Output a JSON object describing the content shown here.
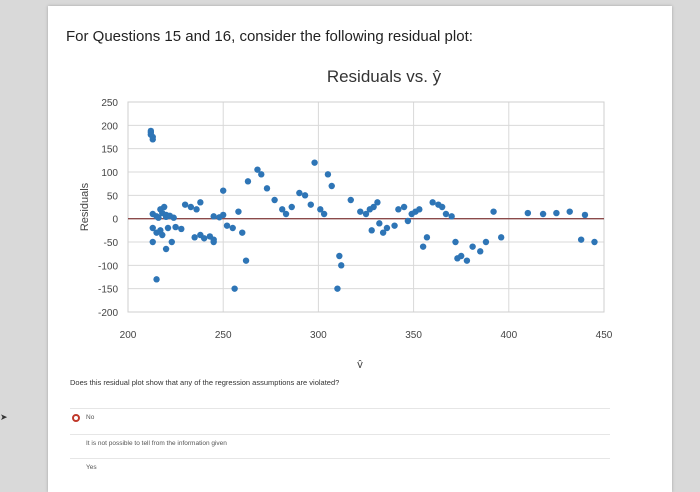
{
  "question": "For Questions 15 and 16, consider the following residual plot:",
  "prompt": "Does this residual plot show that any of the regression assumptions are violated?",
  "options": [
    {
      "label": "No",
      "selected": true
    },
    {
      "label": "It is not possible to tell from the information given",
      "selected": false
    },
    {
      "label": "Yes",
      "selected": false
    }
  ],
  "colors": {
    "points": "#2e75b6",
    "zero_line": "#8b4a4a",
    "grid": "#d9d9d9",
    "selected_radio": "#c0392b"
  },
  "chart_data": {
    "type": "scatter",
    "title": "Residuals vs. ŷ",
    "xlabel": "ŷ",
    "ylabel": "Residuals",
    "xlim": [
      200,
      450
    ],
    "ylim": [
      -200,
      250
    ],
    "xticks": [
      200,
      250,
      300,
      350,
      400,
      450
    ],
    "yticks": [
      250,
      200,
      150,
      100,
      50,
      0,
      -50,
      -100,
      -150,
      -200
    ],
    "grid": true,
    "zero_line": true,
    "points": [
      [
        212,
        185
      ],
      [
        212,
        180
      ],
      [
        213,
        175
      ],
      [
        212,
        188
      ],
      [
        213,
        170
      ],
      [
        213,
        10
      ],
      [
        215,
        5
      ],
      [
        218,
        12
      ],
      [
        220,
        8
      ],
      [
        216,
        2
      ],
      [
        220,
        4
      ],
      [
        222,
        6
      ],
      [
        224,
        2
      ],
      [
        217,
        20
      ],
      [
        219,
        25
      ],
      [
        213,
        -20
      ],
      [
        217,
        -25
      ],
      [
        221,
        -20
      ],
      [
        225,
        -18
      ],
      [
        228,
        -22
      ],
      [
        215,
        -30
      ],
      [
        218,
        -35
      ],
      [
        213,
        -50
      ],
      [
        223,
        -50
      ],
      [
        220,
        -65
      ],
      [
        215,
        -130
      ],
      [
        235,
        -40
      ],
      [
        238,
        -35
      ],
      [
        240,
        -42
      ],
      [
        243,
        -38
      ],
      [
        245,
        -50
      ],
      [
        230,
        30
      ],
      [
        233,
        25
      ],
      [
        236,
        20
      ],
      [
        238,
        35
      ],
      [
        245,
        5
      ],
      [
        248,
        3
      ],
      [
        250,
        8
      ],
      [
        258,
        15
      ],
      [
        252,
        -15
      ],
      [
        255,
        -20
      ],
      [
        260,
        -30
      ],
      [
        250,
        60
      ],
      [
        245,
        -45
      ],
      [
        256,
        -150
      ],
      [
        262,
        -90
      ],
      [
        263,
        80
      ],
      [
        268,
        105
      ],
      [
        270,
        95
      ],
      [
        273,
        65
      ],
      [
        277,
        40
      ],
      [
        281,
        20
      ],
      [
        283,
        10
      ],
      [
        286,
        25
      ],
      [
        290,
        55
      ],
      [
        293,
        50
      ],
      [
        296,
        30
      ],
      [
        298,
        120
      ],
      [
        301,
        20
      ],
      [
        303,
        10
      ],
      [
        305,
        95
      ],
      [
        307,
        70
      ],
      [
        311,
        -80
      ],
      [
        312,
        -100
      ],
      [
        310,
        -150
      ],
      [
        317,
        40
      ],
      [
        322,
        15
      ],
      [
        325,
        10
      ],
      [
        327,
        20
      ],
      [
        329,
        25
      ],
      [
        331,
        35
      ],
      [
        328,
        -25
      ],
      [
        332,
        -10
      ],
      [
        334,
        -30
      ],
      [
        336,
        -20
      ],
      [
        340,
        -15
      ],
      [
        342,
        20
      ],
      [
        345,
        25
      ],
      [
        347,
        -5
      ],
      [
        349,
        10
      ],
      [
        351,
        15
      ],
      [
        353,
        20
      ],
      [
        355,
        -60
      ],
      [
        357,
        -40
      ],
      [
        360,
        35
      ],
      [
        363,
        30
      ],
      [
        365,
        25
      ],
      [
        367,
        10
      ],
      [
        370,
        5
      ],
      [
        372,
        -50
      ],
      [
        373,
        -85
      ],
      [
        375,
        -80
      ],
      [
        378,
        -90
      ],
      [
        381,
        -60
      ],
      [
        385,
        -70
      ],
      [
        388,
        -50
      ],
      [
        392,
        15
      ],
      [
        396,
        -40
      ],
      [
        410,
        12
      ],
      [
        418,
        10
      ],
      [
        425,
        12
      ],
      [
        432,
        15
      ],
      [
        440,
        8
      ],
      [
        445,
        -50
      ],
      [
        438,
        -45
      ]
    ]
  }
}
